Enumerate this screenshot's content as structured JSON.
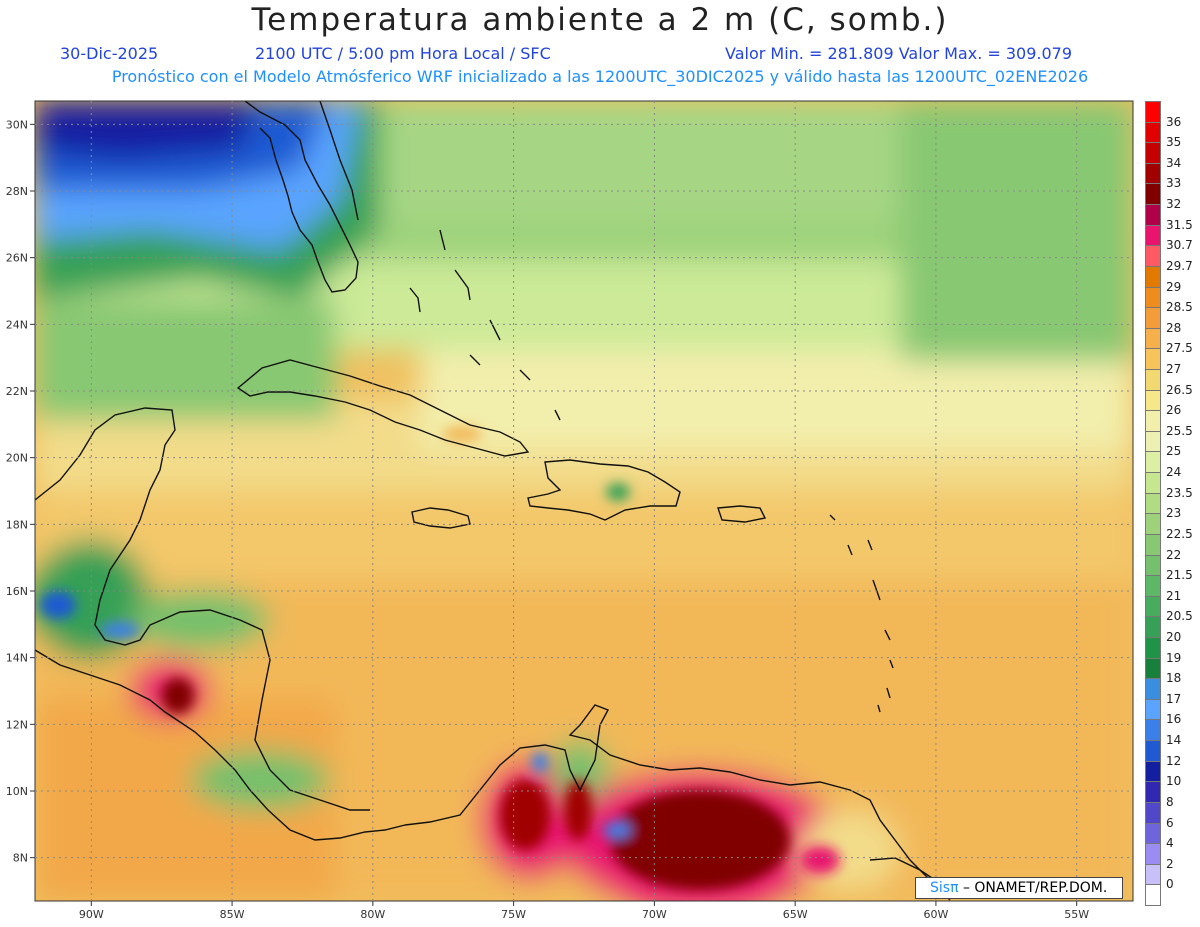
{
  "title": "Temperatura ambiente a 2 m (C, somb.)",
  "header": {
    "date": "30-Dic-2025",
    "time": "2100 UTC / 5:00 pm Hora Local / SFC",
    "minmax": "Valor Min. = 281.809  Valor Max. = 309.079",
    "forecast": "Pronóstico con el Modelo Atmósferico WRF inicializado a las 1200UTC_30DIC2025 y válido hasta las  1200UTC_02ENE2026"
  },
  "axes": {
    "lat_labels": [
      "30N",
      "28N",
      "26N",
      "24N",
      "22N",
      "20N",
      "18N",
      "16N",
      "14N",
      "12N",
      "10N",
      "8N"
    ],
    "lat_values": [
      30,
      28,
      26,
      24,
      22,
      20,
      18,
      16,
      14,
      12,
      10,
      8
    ],
    "lon_labels": [
      "90W",
      "85W",
      "80W",
      "75W",
      "70W",
      "65W",
      "60W",
      "55W"
    ],
    "lon_values": [
      -90,
      -85,
      -80,
      -75,
      -70,
      -65,
      -60,
      -55
    ],
    "lon_range": [
      -92,
      -53
    ],
    "lat_range": [
      6.7,
      30.7
    ]
  },
  "colorbar": {
    "labels": [
      "36",
      "35",
      "34",
      "33",
      "32",
      "31.5",
      "30.7",
      "29.7",
      "29",
      "28.5",
      "28",
      "27.5",
      "27",
      "26.5",
      "26",
      "25.5",
      "25",
      "24",
      "23.5",
      "23",
      "22.5",
      "22",
      "21.5",
      "21",
      "20.5",
      "20",
      "19",
      "18",
      "17",
      "16",
      "14",
      "12",
      "10",
      "8",
      "6",
      "4",
      "2",
      "0"
    ],
    "colors": [
      "#ff0000",
      "#e00000",
      "#c40000",
      "#a00000",
      "#800000",
      "#b0004a",
      "#e8146e",
      "#ff5a64",
      "#e27a00",
      "#ee8c1e",
      "#f29c3a",
      "#f5b04c",
      "#f6c45a",
      "#f2d870",
      "#f6e888",
      "#f2eeac",
      "#ecf0b2",
      "#dcefa4",
      "#c6e690",
      "#b2dc82",
      "#9ed27a",
      "#88c872",
      "#74c06c",
      "#5cb866",
      "#48ac5e",
      "#36a056",
      "#1f9447",
      "#16803c",
      "#3a8ee0",
      "#5aa4ff",
      "#3a80e8",
      "#1f5ad2",
      "#141ea0",
      "#3028b0",
      "#5048c8",
      "#6e64dc",
      "#9a8cf0",
      "#c8c0f8",
      "#ffffff"
    ]
  },
  "credit": {
    "logo": "Sisπ",
    "text": " – ONAMET/REP.DOM."
  }
}
